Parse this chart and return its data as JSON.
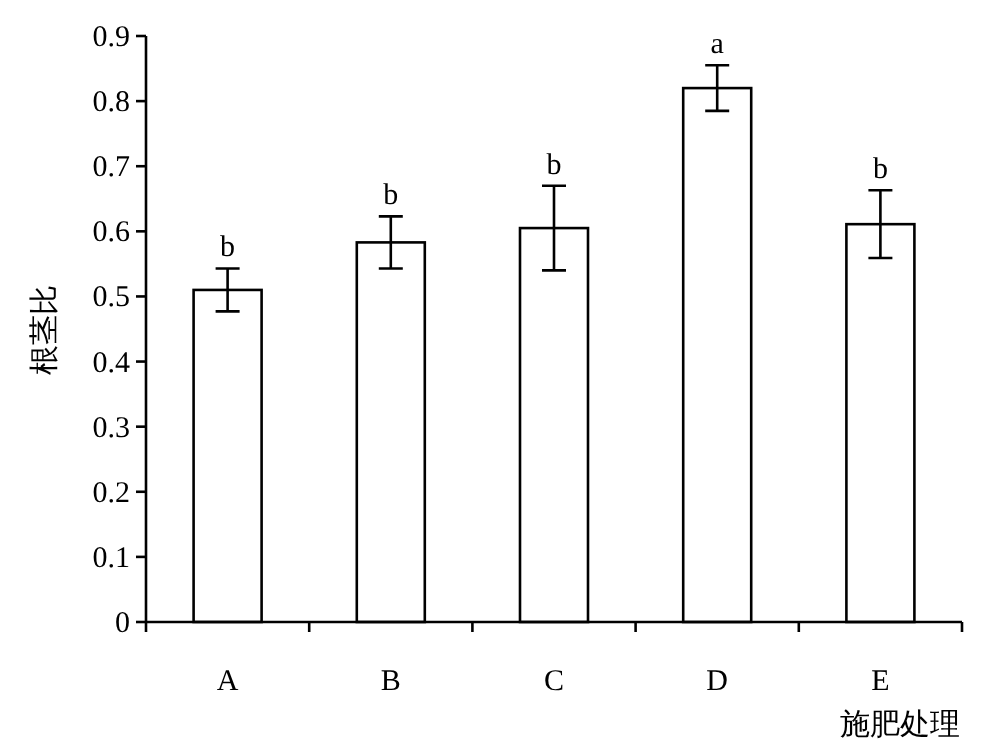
{
  "chart_data": {
    "type": "bar",
    "xlabel": "施肥处理",
    "ylabel": "根茎比",
    "categories": [
      "A",
      "B",
      "C",
      "D",
      "E"
    ],
    "values": [
      0.51,
      0.583,
      0.605,
      0.82,
      0.611
    ],
    "errors": [
      0.033,
      0.04,
      0.065,
      0.035,
      0.052
    ],
    "color": "#ffffff",
    "ylim": [
      0,
      0.9
    ],
    "yticks": [
      0,
      0.1,
      0.2,
      0.3,
      0.4,
      0.5,
      0.6,
      0.7,
      0.8,
      0.9
    ],
    "annotations": [
      "b",
      "b",
      "b",
      "a",
      "b"
    ]
  }
}
